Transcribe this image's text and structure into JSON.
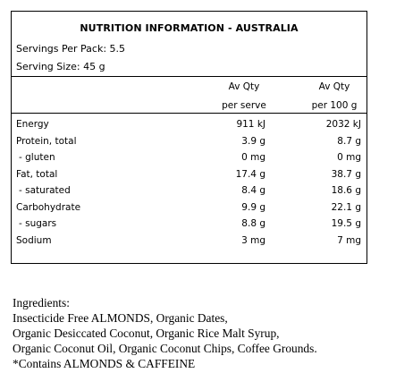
{
  "panel": {
    "title": "NUTRITION INFORMATION - AUSTRALIA",
    "servings_per_pack": "Servings Per Pack: 5.5",
    "serving_size": "Serving Size: 45 g",
    "col_serve_top": "Av Qty",
    "col_serve_bottom": "per serve",
    "col_100_top": "Av Qty",
    "col_100_bottom": "per 100 g",
    "rows": [
      {
        "label": "Energy",
        "per_serve": "911 kJ",
        "per_100": "2032 kJ"
      },
      {
        "label": "Protein, total",
        "per_serve": "3.9 g",
        "per_100": "8.7 g"
      },
      {
        "label": "- gluten",
        "per_serve": "0 mg",
        "per_100": "0 mg"
      },
      {
        "label": "Fat, total",
        "per_serve": "17.4 g",
        "per_100": "38.7 g"
      },
      {
        "label": "- saturated",
        "per_serve": "8.4 g",
        "per_100": "18.6 g"
      },
      {
        "label": "Carbohydrate",
        "per_serve": "9.9 g",
        "per_100": "22.1 g"
      },
      {
        "label": "- sugars",
        "per_serve": "8.8 g",
        "per_100": "19.5 g"
      },
      {
        "label": "Sodium",
        "per_serve": "3 mg",
        "per_100": "7 mg"
      }
    ]
  },
  "ingredients": {
    "heading": "Ingredients:",
    "line1": "Insecticide Free ALMONDS, Organic Dates,",
    "line2": "Organic Desiccated Coconut, Organic Rice Malt Syrup,",
    "line3": "Organic Coconut Oil, Organic Coconut Chips, Coffee Grounds.",
    "line4": "*Contains ALMONDS & CAFFEINE"
  }
}
